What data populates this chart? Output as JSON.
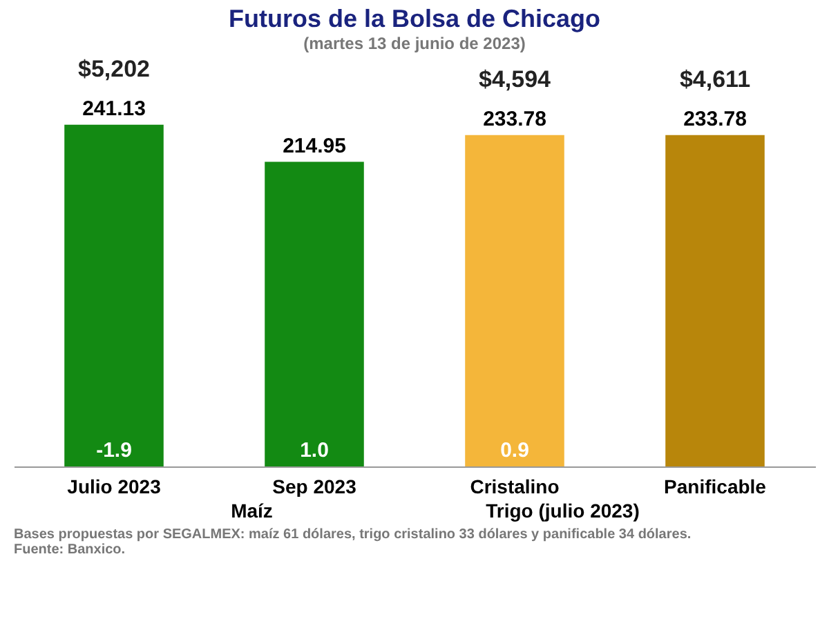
{
  "chart_data": {
    "type": "bar",
    "title": "Futuros de la Bolsa de Chicago",
    "subtitle": "(martes 13 de junio de 2023)",
    "categories": [
      "Julio 2023",
      "Sep 2023",
      "Cristalino",
      "Panificable"
    ],
    "values": [
      241.13,
      214.95,
      233.78,
      233.78
    ],
    "colors": [
      "#138a13",
      "#138a13",
      "#f4b63a",
      "#b8860b"
    ],
    "value_labels": [
      "241.13",
      "214.95",
      "233.78",
      "233.78"
    ],
    "annotations": [
      {
        "text": "$5,202",
        "x": "Julio 2023",
        "y": 241.13
      },
      {
        "text": "$4,594",
        "x": "Cristalino",
        "y": 233.78
      },
      {
        "text": "$4,611",
        "x": "Panificable",
        "y": 233.78
      },
      {
        "text": "-1.9",
        "x": "Julio 2023",
        "y": 0
      },
      {
        "text": "1.0",
        "x": "Sep 2023",
        "y": 0
      },
      {
        "text": "0.9",
        "x": "Cristalino",
        "y": 0
      },
      "Maíz",
      "Trigo (julio 2023)",
      "Bases propuestas por SEGALMEX: maíz 61 dólares, trigo cristalino 33 dólares y panificable 34 dólares.",
      "Fuente: Banxico."
    ]
  }
}
